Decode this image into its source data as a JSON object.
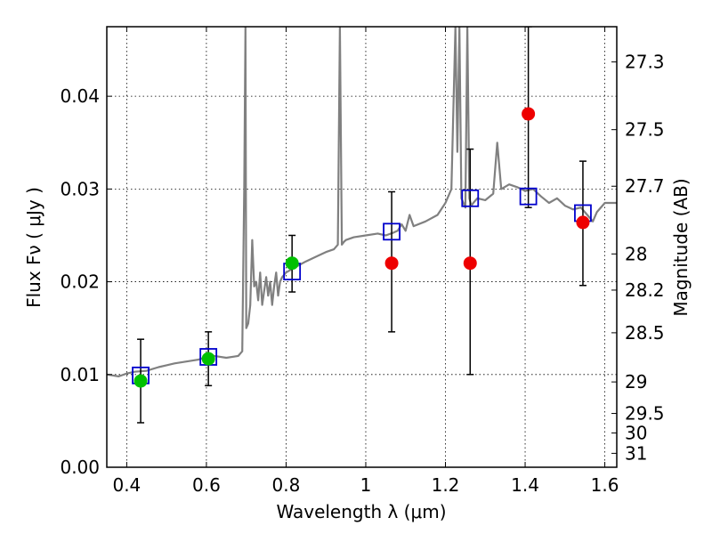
{
  "chart_data": {
    "type": "scatter",
    "xlabel": "Wavelength  λ (μm)",
    "ylabel": "Flux  Fν ( μJy )",
    "y2label": "Magnitude (AB)",
    "xlim": [
      0.35,
      1.63
    ],
    "ylim": [
      0.0,
      0.0475
    ],
    "grid": true,
    "x_ticks": [
      0.4,
      0.6,
      0.8,
      1.0,
      1.2,
      1.4,
      1.6
    ],
    "x_tick_labels": [
      "0.4",
      "0.6",
      "0.8",
      "1",
      "1.2",
      "1.4",
      "1.6"
    ],
    "y_ticks": [
      0.0,
      0.01,
      0.02,
      0.03,
      0.04
    ],
    "y_tick_labels": [
      "0.00",
      "0.01",
      "0.02",
      "0.03",
      "0.04"
    ],
    "y2_ticks": [
      {
        "label": "27.3",
        "flux": 0.0437
      },
      {
        "label": "27.5",
        "flux": 0.0364
      },
      {
        "label": "27.7",
        "flux": 0.0303
      },
      {
        "label": "28",
        "flux": 0.023
      },
      {
        "label": "28.2",
        "flux": 0.0191
      },
      {
        "label": "28.5",
        "flux": 0.0145
      },
      {
        "label": "29",
        "flux": 0.0092
      },
      {
        "label": "29.5",
        "flux": 0.0058
      },
      {
        "label": "30",
        "flux": 0.0037
      },
      {
        "label": "31",
        "flux": 0.0015
      }
    ],
    "spectrum": {
      "color": "#808080",
      "x": [
        0.35,
        0.38,
        0.4,
        0.42,
        0.45,
        0.48,
        0.5,
        0.52,
        0.55,
        0.58,
        0.6,
        0.62,
        0.65,
        0.68,
        0.69,
        0.695,
        0.698,
        0.7,
        0.705,
        0.71,
        0.715,
        0.72,
        0.725,
        0.73,
        0.735,
        0.74,
        0.745,
        0.75,
        0.755,
        0.76,
        0.765,
        0.77,
        0.775,
        0.78,
        0.785,
        0.79,
        0.8,
        0.82,
        0.85,
        0.88,
        0.9,
        0.92,
        0.93,
        0.935,
        0.94,
        0.945,
        0.95,
        0.97,
        1.0,
        1.03,
        1.05,
        1.07,
        1.08,
        1.09,
        1.1,
        1.11,
        1.12,
        1.15,
        1.18,
        1.2,
        1.215,
        1.225,
        1.23,
        1.235,
        1.24,
        1.25,
        1.255,
        1.26,
        1.265,
        1.27,
        1.28,
        1.3,
        1.32,
        1.33,
        1.34,
        1.36,
        1.38,
        1.4,
        1.42,
        1.44,
        1.46,
        1.48,
        1.5,
        1.52,
        1.54,
        1.56,
        1.57,
        1.58,
        1.6,
        1.63
      ],
      "y": [
        0.01,
        0.0098,
        0.0101,
        0.0103,
        0.0104,
        0.0108,
        0.011,
        0.0112,
        0.0114,
        0.0116,
        0.0119,
        0.012,
        0.0118,
        0.012,
        0.0125,
        0.03,
        0.0475,
        0.015,
        0.0155,
        0.0175,
        0.0245,
        0.0195,
        0.02,
        0.018,
        0.021,
        0.0175,
        0.019,
        0.0205,
        0.0185,
        0.02,
        0.0175,
        0.0195,
        0.021,
        0.0185,
        0.02,
        0.0205,
        0.021,
        0.0215,
        0.0222,
        0.0228,
        0.0232,
        0.0235,
        0.024,
        0.0475,
        0.024,
        0.0243,
        0.0245,
        0.0248,
        0.025,
        0.0252,
        0.025,
        0.0253,
        0.0255,
        0.0262,
        0.0255,
        0.0272,
        0.026,
        0.0265,
        0.0272,
        0.0285,
        0.03,
        0.0475,
        0.034,
        0.0475,
        0.029,
        0.028,
        0.0475,
        0.029,
        0.0282,
        0.0285,
        0.029,
        0.0288,
        0.0295,
        0.035,
        0.03,
        0.0305,
        0.0302,
        0.0298,
        0.03,
        0.0292,
        0.0285,
        0.029,
        0.0282,
        0.0278,
        0.028,
        0.027,
        0.0265,
        0.0275,
        0.0285,
        0.0285
      ]
    },
    "model_points": {
      "marker": "open-square",
      "color": "#0000cc",
      "x": [
        0.435,
        0.605,
        0.815,
        1.065,
        1.262,
        1.408,
        1.545
      ],
      "y": [
        0.0099,
        0.0119,
        0.0211,
        0.0254,
        0.029,
        0.0292,
        0.0274
      ]
    },
    "detections": {
      "marker": "filled-circle",
      "color": "#00c000",
      "x": [
        0.435,
        0.605,
        0.815
      ],
      "y": [
        0.0093,
        0.0117,
        0.022
      ],
      "err_low": [
        0.0048,
        0.0088,
        0.0189
      ],
      "err_high": [
        0.0138,
        0.0146,
        0.025
      ]
    },
    "nondetections": {
      "marker": "filled-circle",
      "color": "#ee0000",
      "x": [
        1.065,
        1.262,
        1.408,
        1.545
      ],
      "y": [
        0.022,
        0.022,
        0.0381,
        0.0264
      ],
      "err_low": [
        0.0146,
        0.01,
        0.028,
        0.0196
      ],
      "err_high": [
        0.0297,
        0.0343,
        0.0475,
        0.033
      ]
    }
  }
}
